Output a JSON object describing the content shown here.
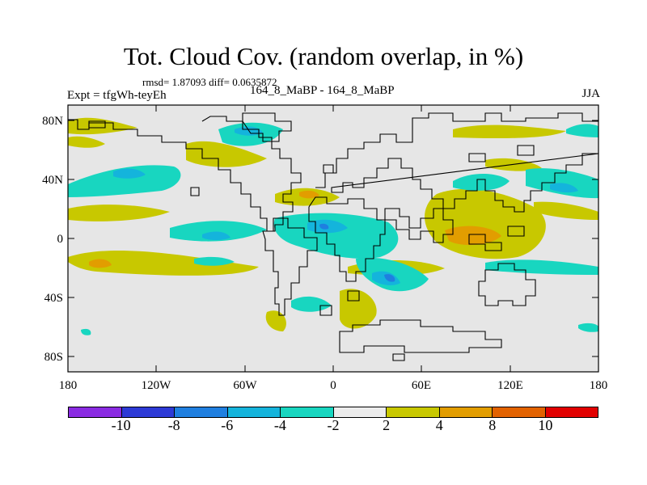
{
  "title": "Tot. Cloud Cov. (random overlap, in %)",
  "stats": "rmsd= 1.87093 diff= 0.0635872",
  "expt": "Expt = tfgWh-teyEh",
  "runs": "164_8_MaBP - 164_8_MaBP",
  "season": "JJA",
  "axes": {
    "x_ticks": [
      "180",
      "120W",
      "60W",
      "0",
      "60E",
      "120E",
      "180"
    ],
    "y_ticks": [
      "80N",
      "40N",
      "0",
      "40S",
      "80S"
    ]
  },
  "colorbar": {
    "colors": [
      "#8a2be2",
      "#2d3ad6",
      "#1f7fe0",
      "#14b4dc",
      "#18d6c0",
      "#ececec",
      "#c8c800",
      "#e29d00",
      "#e26200",
      "#e10000"
    ],
    "labels": [
      "-10",
      "-8",
      "-6",
      "-4",
      "-2",
      "2",
      "4",
      "8",
      "10"
    ]
  },
  "colors": {
    "neutral": "#e6e6e6",
    "teal": "#18d6c0",
    "cyan": "#14b4dc",
    "blue": "#1f7fe0",
    "olive": "#c8c800",
    "orange": "#e29d00",
    "coast": "#000000"
  }
}
